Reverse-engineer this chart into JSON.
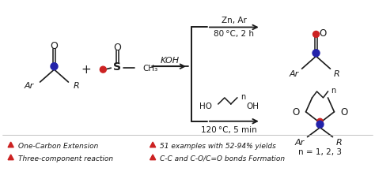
{
  "background_color": "#ffffff",
  "dark": "#1a1a1a",
  "blue": "#2222aa",
  "red_o": "#cc2222",
  "tri_red": "#cc2222",
  "fig_width": 4.74,
  "fig_height": 2.28,
  "dpi": 100,
  "legend_items": [
    {
      "text": "One-Carbon Extension",
      "col": 0
    },
    {
      "text": "51 examples with 52-94% yields",
      "col": 1
    },
    {
      "text": "Three-component reaction",
      "col": 0
    },
    {
      "text": "C-C and C-O/C=O bonds Formation",
      "col": 1
    }
  ]
}
